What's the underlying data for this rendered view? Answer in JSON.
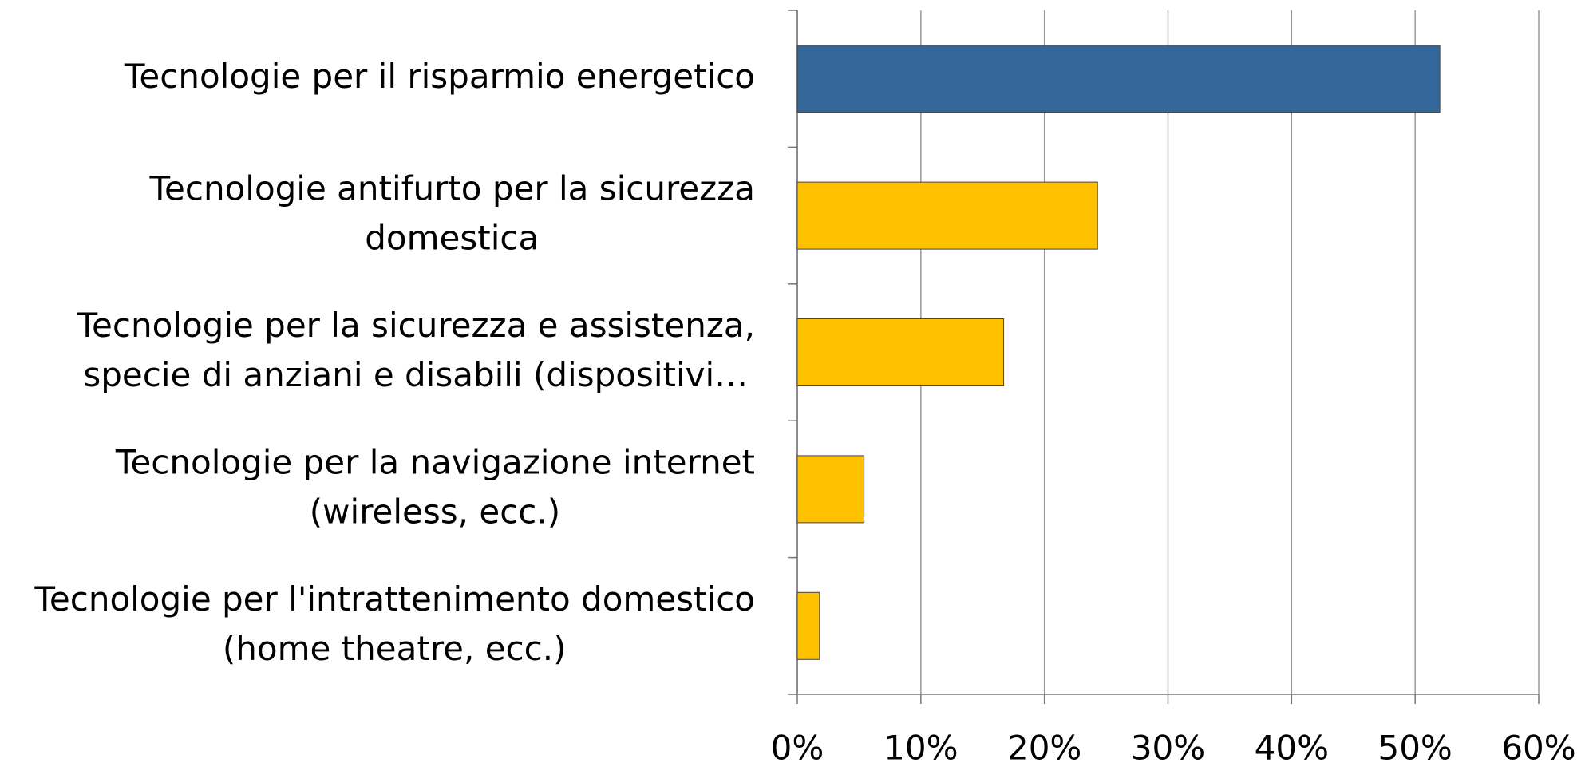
{
  "chart_data": {
    "type": "bar",
    "orientation": "horizontal",
    "categories": [
      [
        "Tecnologie per il risparmio energetico"
      ],
      [
        "Tecnologie antifurto per la sicurezza",
        "domestica"
      ],
      [
        "Tecnologie per la sicurezza e assistenza,",
        "specie di anziani e disabili (dispositivi…"
      ],
      [
        "Tecnologie per la navigazione internet",
        "(wireless, ecc.)"
      ],
      [
        "Tecnologie per l'intrattenimento domestico",
        "(home theatre, ecc.)"
      ]
    ],
    "values": [
      52,
      24.3,
      16.7,
      5.4,
      1.8
    ],
    "colors": [
      "#336699",
      "#ffc000",
      "#ffc000",
      "#ffc000",
      "#ffc000"
    ],
    "xlim": [
      0,
      60
    ],
    "xticks": [
      {
        "value": 0,
        "label": "0%"
      },
      {
        "value": 10,
        "label": "10%"
      },
      {
        "value": 20,
        "label": "20%"
      },
      {
        "value": 30,
        "label": "30%"
      },
      {
        "value": 40,
        "label": "40%"
      },
      {
        "value": 50,
        "label": "50%"
      },
      {
        "value": 60,
        "label": "60%"
      }
    ],
    "grid": true
  }
}
